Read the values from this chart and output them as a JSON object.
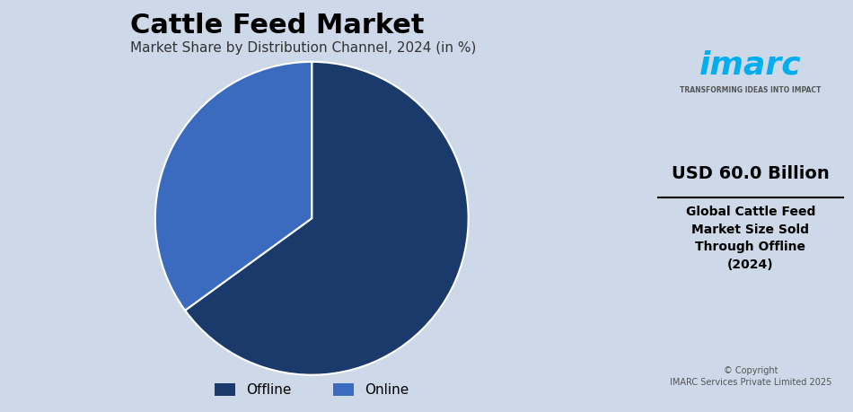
{
  "title": "Cattle Feed Market",
  "subtitle": "Market Share by Distribution Channel, 2024 (in %)",
  "slices": [
    {
      "label": "Offline",
      "value": 65,
      "color": "#1a3a6b"
    },
    {
      "label": "Online",
      "value": 35,
      "color": "#3a6bbf"
    }
  ],
  "bg_color": "#cdd8e8",
  "right_panel_bg": "#ffffff",
  "title_fontsize": 22,
  "subtitle_fontsize": 11,
  "legend_fontsize": 11,
  "right_panel_value": "USD 60.0 Billion",
  "right_panel_desc": "Global Cattle Feed\nMarket Size Sold\nThrough Offline\n(2024)",
  "copyright": "© Copyright\nIMARC Services Private Limited 2025",
  "startangle": 90
}
